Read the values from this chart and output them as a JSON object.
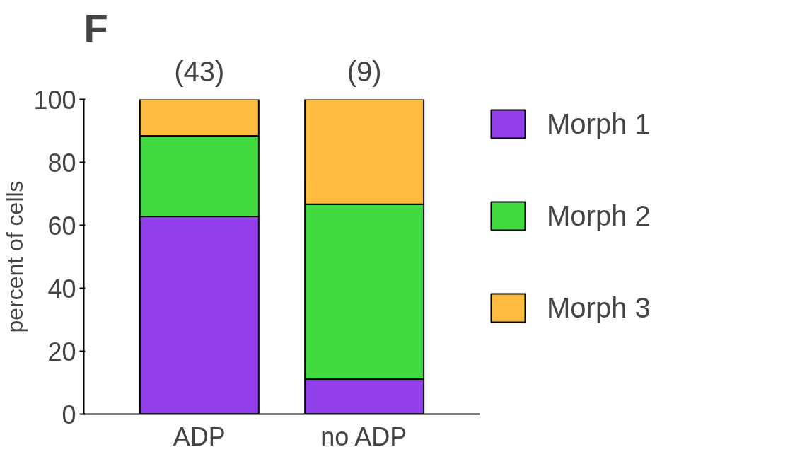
{
  "chart_data": {
    "type": "bar",
    "title": "F",
    "ylabel": "percent of cells",
    "categories": [
      "ADP",
      "no ADP"
    ],
    "stacked": true,
    "series": [
      {
        "name": "Morph 1",
        "color": "#9140ec",
        "values": [
          62.8,
          11.1
        ]
      },
      {
        "name": "Morph 2",
        "color": "#40d940",
        "values": [
          25.6,
          55.6
        ]
      },
      {
        "name": "Morph 3",
        "color": "#fdbc40",
        "values": [
          11.6,
          33.3
        ]
      }
    ],
    "annotations": [
      "(43)",
      "(9)"
    ],
    "ylim": [
      0,
      100
    ],
    "yticks": [
      0,
      20,
      40,
      60,
      80,
      100
    ],
    "grid": false,
    "legend": "right"
  }
}
